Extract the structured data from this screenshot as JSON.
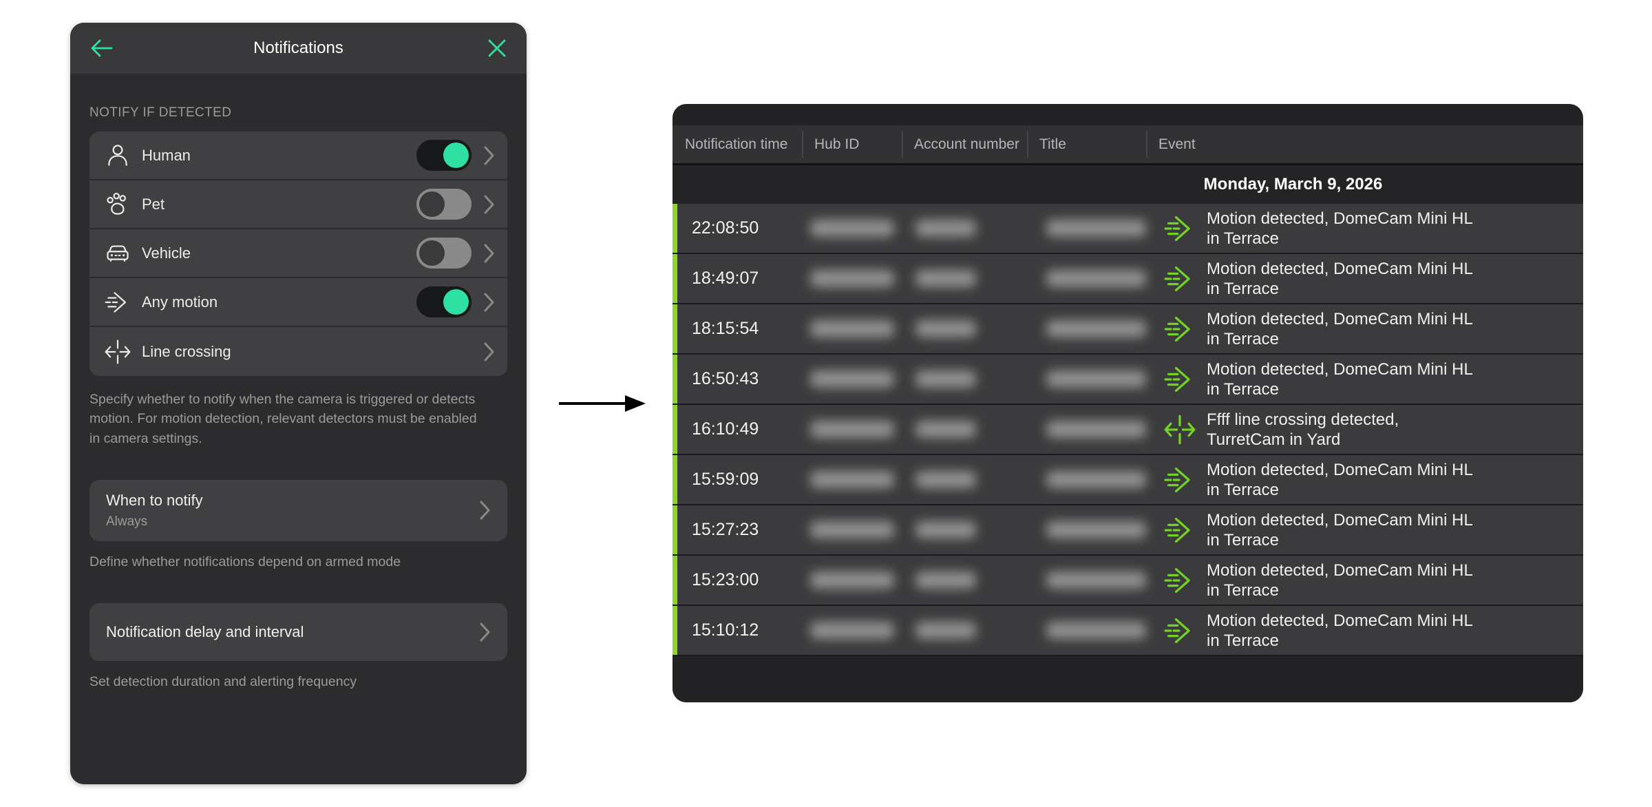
{
  "colors": {
    "accent_teal": "#2ee0a1",
    "panel_bg": "#2c2c2e",
    "panel_header_bg": "#39393b",
    "card_bg": "#404042",
    "table_bg": "#232325",
    "table_header_bg": "#323234",
    "date_band_bg": "#242426",
    "row_bg": "#3b3b3d",
    "row_bar_green": "#8ed62c",
    "event_icon_green": "#72d226"
  },
  "settings_panel": {
    "title": "Notifications",
    "back_icon": "back-arrow-icon",
    "close_icon": "close-icon",
    "section_label": "NOTIFY IF DETECTED",
    "detectors": [
      {
        "label": "Human",
        "icon": "human-icon",
        "has_toggle": true,
        "enabled": true
      },
      {
        "label": "Pet",
        "icon": "pet-icon",
        "has_toggle": true,
        "enabled": false
      },
      {
        "label": "Vehicle",
        "icon": "vehicle-icon",
        "has_toggle": true,
        "enabled": false
      },
      {
        "label": "Any motion",
        "icon": "motion-icon",
        "has_toggle": true,
        "enabled": true
      },
      {
        "label": "Line crossing",
        "icon": "line-crossing-icon",
        "has_toggle": false,
        "enabled": null
      }
    ],
    "detectors_hint": "Specify whether to notify when the camera is triggered or detects motion. For motion detection, relevant detectors must be enabled in camera settings.",
    "when_to_notify": {
      "title": "When to notify",
      "value": "Always"
    },
    "when_to_notify_hint": "Define whether notifications depend on armed mode",
    "delay": {
      "title": "Notification delay and interval"
    },
    "delay_hint": "Set detection duration and alerting frequency"
  },
  "table": {
    "columns": [
      "Notification time",
      "Hub ID",
      "Account number",
      "Title",
      "Event"
    ],
    "date_header": "Monday, March 9, 2026",
    "redacted_columns": [
      "Hub ID",
      "Account number",
      "Title"
    ],
    "rows": [
      {
        "time": "22:08:50",
        "event_type": "motion",
        "event": "Motion detected, DomeCam Mini HL\nin Terrace"
      },
      {
        "time": "18:49:07",
        "event_type": "motion",
        "event": "Motion detected, DomeCam Mini HL\nin Terrace"
      },
      {
        "time": "18:15:54",
        "event_type": "motion",
        "event": "Motion detected, DomeCam Mini HL\nin Terrace"
      },
      {
        "time": "16:50:43",
        "event_type": "motion",
        "event": "Motion detected, DomeCam Mini HL\nin Terrace"
      },
      {
        "time": "16:10:49",
        "event_type": "line-crossing",
        "event": "Ffff line crossing detected,\nTurretCam in Yard"
      },
      {
        "time": "15:59:09",
        "event_type": "motion",
        "event": "Motion detected, DomeCam Mini HL\nin Terrace"
      },
      {
        "time": "15:27:23",
        "event_type": "motion",
        "event": "Motion detected, DomeCam Mini HL\nin Terrace"
      },
      {
        "time": "15:23:00",
        "event_type": "motion",
        "event": "Motion detected, DomeCam Mini HL\nin Terrace"
      },
      {
        "time": "15:10:12",
        "event_type": "motion",
        "event": "Motion detected, DomeCam Mini HL\nin Terrace"
      }
    ]
  }
}
